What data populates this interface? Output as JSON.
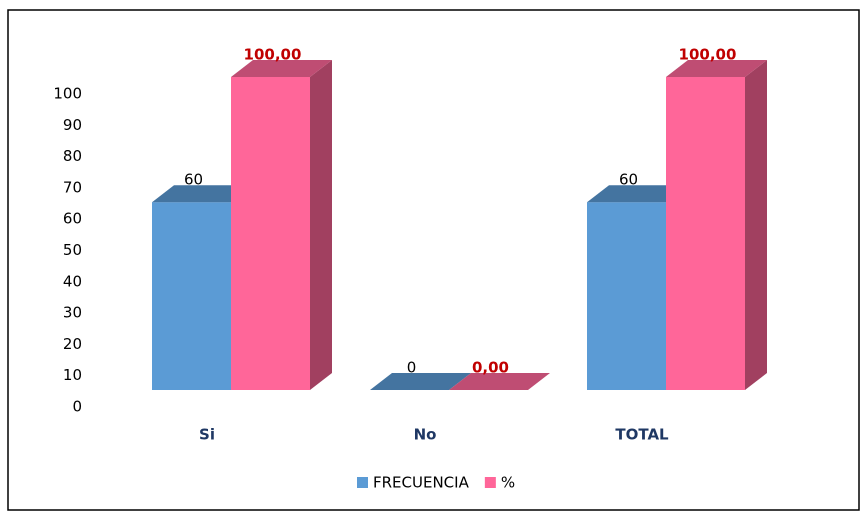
{
  "chart_data": {
    "type": "bar3d",
    "categories": [
      "Si",
      "No",
      "TOTAL"
    ],
    "series": [
      {
        "name": "FRECUENCIA",
        "color": "#5b9bd5",
        "values": [
          60,
          0,
          60
        ]
      },
      {
        "name": "%",
        "color": "#ff6699",
        "values": [
          100,
          0,
          100
        ],
        "value_labels": [
          "100,00",
          "0,00",
          "100,00"
        ]
      }
    ],
    "ylim": [
      0,
      100
    ],
    "yticks": [
      0,
      10,
      20,
      30,
      40,
      50,
      60,
      70,
      80,
      90,
      100
    ],
    "grid": false,
    "legend": "bottom"
  }
}
